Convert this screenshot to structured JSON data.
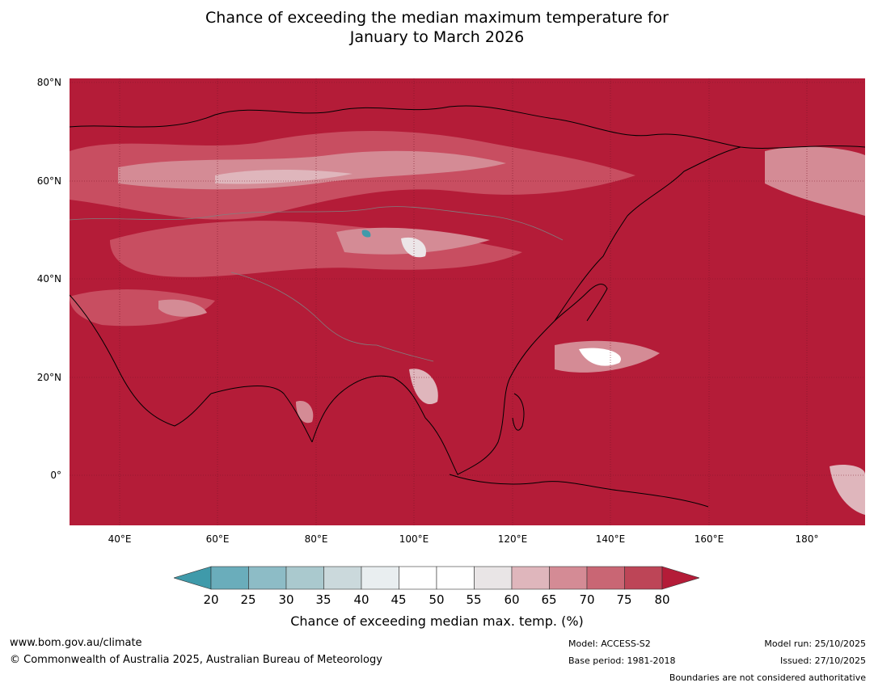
{
  "title": {
    "line1": "Chance of exceeding the median maximum temperature for",
    "line2": "January to March 2026"
  },
  "map": {
    "lat_labels": [
      "80°N",
      "60°N",
      "40°N",
      "20°N",
      "0°"
    ],
    "lon_labels": [
      "40°E",
      "60°E",
      "80°E",
      "100°E",
      "120°E",
      "140°E",
      "160°E",
      "180°"
    ],
    "background_color": "#b41c38"
  },
  "colorbar": {
    "ticks": [
      "20",
      "25",
      "30",
      "35",
      "40",
      "45",
      "50",
      "55",
      "60",
      "65",
      "70",
      "75",
      "80"
    ],
    "colors": [
      "#3f9aaa",
      "#6aadbb",
      "#8dbcc6",
      "#aac9ce",
      "#cbd9dc",
      "#e9eef0",
      "#ffffff",
      "#ffffff",
      "#e9e5e6",
      "#dfb6bc",
      "#d48b95",
      "#c96674",
      "#bd4557",
      "#b41c38"
    ],
    "label": "Chance of exceeding median max. temp. (%)"
  },
  "footer": {
    "website": "www.bom.gov.au/climate",
    "copyright": "© Commonwealth of Australia 2025, Australian Bureau of Meteorology",
    "model": "Model: ACCESS-S2",
    "base_period": "Base period: 1981-2018",
    "model_run": "Model run: 25/10/2025",
    "issued": "Issued: 27/10/2025",
    "disclaimer": "Boundaries are not considered authoritative"
  }
}
